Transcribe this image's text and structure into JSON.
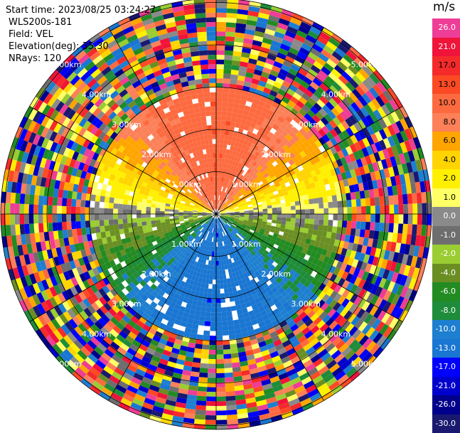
{
  "header": {
    "start_time": "Start time: 2023/08/25 03:24:27",
    "instrument": "WLS200s-181",
    "field": "Field: VEL",
    "elevation": "Elevation(deg): 35.30",
    "nrays": "NRays: 120"
  },
  "chart_data": {
    "type": "heatmap",
    "projection": "polar-ppi",
    "field": "VEL",
    "units": "m/s",
    "range_rings": [
      {
        "label": "1.00km"
      },
      {
        "label": "2.00km"
      },
      {
        "label": "3.00km"
      },
      {
        "label": "4.00km"
      },
      {
        "label": "5.00km"
      }
    ],
    "colorbar": {
      "title": "m/s",
      "levels": [
        {
          "label": "26.0",
          "color": "#ee3d96"
        },
        {
          "label": "21.0",
          "color": "#f0133a"
        },
        {
          "label": "17.0",
          "color": "#f52a2a"
        },
        {
          "label": "13.0",
          "color": "#fb4a24"
        },
        {
          "label": "10.0",
          "color": "#fd6a40"
        },
        {
          "label": "8.0",
          "color": "#fc8058"
        },
        {
          "label": "6.0",
          "color": "#ffa500"
        },
        {
          "label": "4.0",
          "color": "#ffd400"
        },
        {
          "label": "2.0",
          "color": "#fff000"
        },
        {
          "label": "1.0",
          "color": "#ffff66"
        },
        {
          "label": "0.0",
          "color": "#8a8a8a"
        },
        {
          "label": "-1.0",
          "color": "#6e6e6e"
        },
        {
          "label": "-2.0",
          "color": "#9acd32"
        },
        {
          "label": "-4.0",
          "color": "#6b8e23"
        },
        {
          "label": "-6.0",
          "color": "#228b22"
        },
        {
          "label": "-8.0",
          "color": "#1e8c3a"
        },
        {
          "label": "-10.0",
          "color": "#1e7fd0"
        },
        {
          "label": "-13.0",
          "color": "#1976d2"
        },
        {
          "label": "-17.0",
          "color": "#0000ff"
        },
        {
          "label": "-21.0",
          "color": "#0000cd"
        },
        {
          "label": "-26.0",
          "color": "#00008b"
        },
        {
          "label": "-30.0",
          "color": "#191970"
        }
      ]
    },
    "regions": [
      {
        "description": "north sector",
        "velocity_range": [
          6.0,
          13.0
        ]
      },
      {
        "description": "north-central band",
        "velocity_range": [
          1.0,
          6.0
        ]
      },
      {
        "description": "east-west band",
        "velocity_range": [
          -1.0,
          0.0
        ]
      },
      {
        "description": "south-central band",
        "velocity_range": [
          -8.0,
          -2.0
        ]
      },
      {
        "description": "south sector",
        "velocity_range": [
          -13.0,
          -10.0
        ]
      },
      {
        "description": "outer ranges",
        "velocity_range": [
          -30.0,
          26.0
        ]
      }
    ]
  }
}
